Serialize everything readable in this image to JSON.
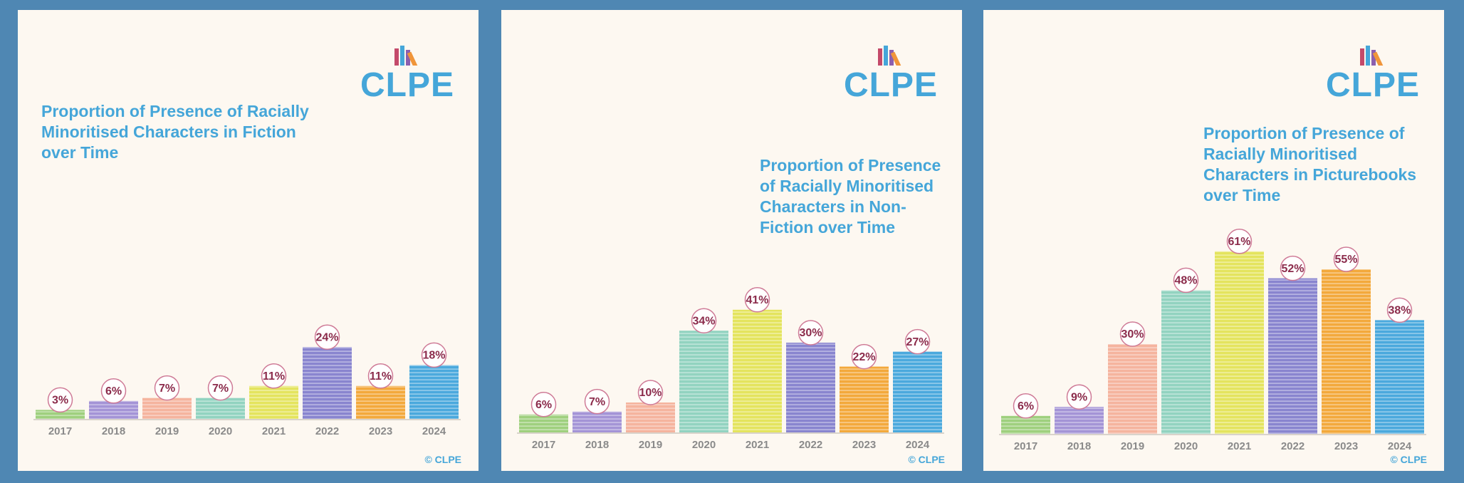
{
  "chart_data": [
    {
      "type": "bar",
      "title": "Proportion of Presence of Racially Minoritised Characters in Fiction over Time",
      "logo": "CLPE",
      "credit": "© CLPE",
      "categories": [
        "2017",
        "2018",
        "2019",
        "2020",
        "2021",
        "2022",
        "2023",
        "2024"
      ],
      "values": [
        3,
        6,
        7,
        7,
        11,
        24,
        11,
        18
      ],
      "value_labels": [
        "3%",
        "6%",
        "7%",
        "7%",
        "11%",
        "24%",
        "11%",
        "18%"
      ],
      "colors": [
        "#9fd07e",
        "#a494d6",
        "#f5b49e",
        "#92d3c0",
        "#e4e45e",
        "#8985cf",
        "#f3a93c",
        "#4ba9dd"
      ]
    },
    {
      "type": "bar",
      "title": "Proportion of Presence of Racially Minoritised Characters in Non-Fiction over Time",
      "logo": "CLPE",
      "credit": "© CLPE",
      "categories": [
        "2017",
        "2018",
        "2019",
        "2020",
        "2021",
        "2022",
        "2023",
        "2024"
      ],
      "values": [
        6,
        7,
        10,
        34,
        41,
        30,
        22,
        27
      ],
      "value_labels": [
        "6%",
        "7%",
        "10%",
        "34%",
        "41%",
        "30%",
        "22%",
        "27%"
      ],
      "colors": [
        "#9fd07e",
        "#a494d6",
        "#f5b49e",
        "#92d3c0",
        "#e4e45e",
        "#8985cf",
        "#f3a93c",
        "#4ba9dd"
      ]
    },
    {
      "type": "bar",
      "title": "Proportion of Presence of Racially Minoritised Characters in Picturebooks over Time",
      "logo": "CLPE",
      "credit": "© CLPE",
      "categories": [
        "2017",
        "2018",
        "2019",
        "2020",
        "2021",
        "2022",
        "2023",
        "2024"
      ],
      "values": [
        6,
        9,
        30,
        48,
        61,
        52,
        55,
        38
      ],
      "value_labels": [
        "6%",
        "9%",
        "30%",
        "48%",
        "61%",
        "52%",
        "55%",
        "38%"
      ],
      "colors": [
        "#9fd07e",
        "#a494d6",
        "#f5b49e",
        "#92d3c0",
        "#e4e45e",
        "#8985cf",
        "#f3a93c",
        "#4ba9dd"
      ]
    }
  ]
}
